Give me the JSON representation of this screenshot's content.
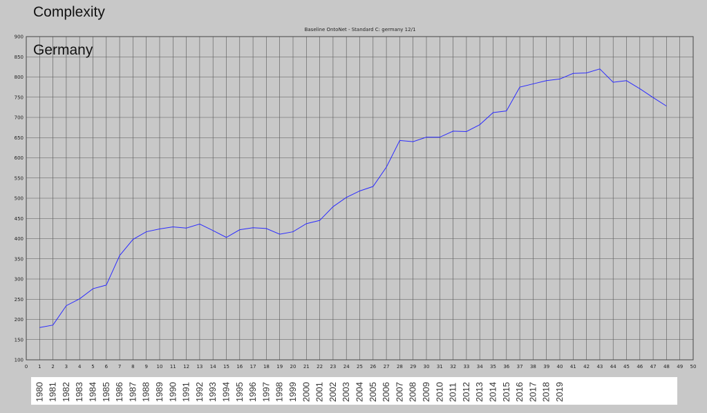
{
  "overlay": {
    "title": "Complexity",
    "country": "Germany"
  },
  "chart_data": {
    "type": "line",
    "title": "Baseline OntoNet - Standard C: germany 12/1",
    "xlabel": "",
    "ylabel": "",
    "xlim": [
      0,
      50
    ],
    "ylim": [
      100,
      900
    ],
    "grid": true,
    "x_ticks": [
      0,
      1,
      2,
      3,
      4,
      5,
      6,
      7,
      8,
      9,
      10,
      11,
      12,
      13,
      14,
      15,
      16,
      17,
      18,
      19,
      20,
      21,
      22,
      23,
      24,
      25,
      26,
      27,
      28,
      29,
      30,
      31,
      32,
      33,
      34,
      35,
      36,
      37,
      38,
      39,
      40,
      41,
      42,
      43,
      44,
      45,
      46,
      47,
      48,
      49,
      50
    ],
    "y_ticks": [
      100,
      150,
      200,
      250,
      300,
      350,
      400,
      450,
      500,
      550,
      600,
      650,
      700,
      750,
      800,
      850,
      900
    ],
    "year_labels": [
      "1980",
      "1981",
      "1982",
      "1983",
      "1984",
      "1985",
      "1986",
      "1987",
      "1988",
      "1989",
      "1990",
      "1991",
      "1992",
      "1993",
      "1994",
      "1995",
      "1996",
      "1997",
      "1998",
      "1999",
      "2000",
      "2001",
      "2002",
      "2003",
      "2004",
      "2005",
      "2006",
      "2007",
      "2008",
      "2009",
      "2010",
      "2011",
      "2012",
      "2013",
      "2014",
      "2015",
      "2016",
      "2017",
      "2018",
      "2019"
    ],
    "series": [
      {
        "color": "#2a2aff",
        "x": [
          1,
          2,
          3,
          4,
          5,
          6,
          7,
          8,
          9,
          10,
          11,
          12,
          13,
          14,
          15,
          16,
          17,
          18,
          19,
          20,
          21,
          22,
          23,
          24,
          25,
          26,
          27,
          28,
          29,
          30,
          31,
          32,
          33,
          34,
          35,
          36,
          37,
          38,
          39,
          40,
          41,
          42,
          43,
          44,
          45,
          46,
          47,
          48
        ],
        "y": [
          180,
          186,
          234,
          251,
          276,
          285,
          358,
          398,
          417,
          424,
          429,
          426,
          436,
          420,
          403,
          422,
          427,
          425,
          411,
          417,
          437,
          445,
          479,
          502,
          518,
          529,
          577,
          643,
          640,
          651,
          651,
          666,
          665,
          682,
          712,
          716,
          775,
          783,
          791,
          795,
          809,
          810,
          820,
          787,
          791,
          771,
          749,
          728
        ]
      }
    ]
  }
}
